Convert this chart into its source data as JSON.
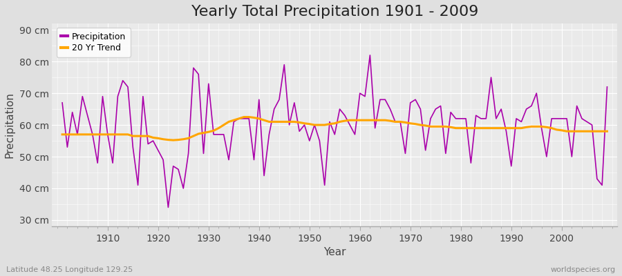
{
  "title": "Yearly Total Precipitation 1901 - 2009",
  "xlabel": "Year",
  "ylabel": "Precipitation",
  "subtitle": "Latitude 48.25 Longitude 129.25",
  "watermark": "worldspecies.org",
  "ylim": [
    28,
    92
  ],
  "yticks": [
    30,
    40,
    50,
    60,
    70,
    80,
    90
  ],
  "ytick_labels": [
    "30 cm",
    "40 cm",
    "50 cm",
    "60 cm",
    "70 cm",
    "80 cm",
    "90 cm"
  ],
  "years": [
    1901,
    1902,
    1903,
    1904,
    1905,
    1906,
    1907,
    1908,
    1909,
    1910,
    1911,
    1912,
    1913,
    1914,
    1915,
    1916,
    1917,
    1918,
    1919,
    1920,
    1921,
    1922,
    1923,
    1924,
    1925,
    1926,
    1927,
    1928,
    1929,
    1930,
    1931,
    1932,
    1933,
    1934,
    1935,
    1936,
    1937,
    1938,
    1939,
    1940,
    1941,
    1942,
    1943,
    1944,
    1945,
    1946,
    1947,
    1948,
    1949,
    1950,
    1951,
    1952,
    1953,
    1954,
    1955,
    1956,
    1957,
    1958,
    1959,
    1960,
    1961,
    1962,
    1963,
    1964,
    1965,
    1966,
    1967,
    1968,
    1969,
    1970,
    1971,
    1972,
    1973,
    1974,
    1975,
    1976,
    1977,
    1978,
    1979,
    1980,
    1981,
    1982,
    1983,
    1984,
    1985,
    1986,
    1987,
    1988,
    1989,
    1990,
    1991,
    1992,
    1993,
    1994,
    1995,
    1996,
    1997,
    1998,
    1999,
    2000,
    2001,
    2002,
    2003,
    2004,
    2005,
    2006,
    2007,
    2008,
    2009
  ],
  "precip": [
    67,
    53,
    64,
    57,
    69,
    63,
    57,
    48,
    69,
    57,
    48,
    69,
    74,
    72,
    53,
    41,
    69,
    54,
    55,
    52,
    49,
    34,
    47,
    46,
    40,
    51,
    78,
    76,
    51,
    73,
    57,
    57,
    57,
    49,
    61,
    62,
    62,
    62,
    49,
    68,
    44,
    57,
    65,
    68,
    79,
    60,
    67,
    58,
    60,
    55,
    60,
    55,
    41,
    61,
    57,
    65,
    63,
    60,
    57,
    70,
    69,
    82,
    59,
    68,
    68,
    65,
    61,
    61,
    51,
    67,
    68,
    65,
    52,
    62,
    65,
    66,
    51,
    64,
    62,
    62,
    62,
    48,
    63,
    62,
    62,
    75,
    62,
    65,
    58,
    47,
    62,
    61,
    65,
    66,
    70,
    59,
    50,
    62,
    62,
    62,
    62,
    50,
    66,
    62,
    61,
    60,
    43,
    41,
    72
  ],
  "trend": [
    57.0,
    57.0,
    57.0,
    57.0,
    57.0,
    57.0,
    57.0,
    57.0,
    57.0,
    57.0,
    57.0,
    57.0,
    57.0,
    57.0,
    56.5,
    56.5,
    56.5,
    56.5,
    56.0,
    55.8,
    55.5,
    55.3,
    55.2,
    55.3,
    55.5,
    55.8,
    56.5,
    57.2,
    57.5,
    57.8,
    58.2,
    59.0,
    60.0,
    61.0,
    61.5,
    62.0,
    62.5,
    62.5,
    62.3,
    62.0,
    61.5,
    61.0,
    61.0,
    61.0,
    61.0,
    61.0,
    61.0,
    60.8,
    60.5,
    60.3,
    60.0,
    60.0,
    60.0,
    60.3,
    60.5,
    61.0,
    61.3,
    61.5,
    61.5,
    61.5,
    61.5,
    61.5,
    61.5,
    61.5,
    61.5,
    61.3,
    61.0,
    61.0,
    60.8,
    60.5,
    60.3,
    60.0,
    59.8,
    59.5,
    59.5,
    59.5,
    59.5,
    59.3,
    59.0,
    59.0,
    59.0,
    59.0,
    59.0,
    59.0,
    59.0,
    59.0,
    59.0,
    59.0,
    59.0,
    59.0,
    59.0,
    59.0,
    59.3,
    59.5,
    59.5,
    59.5,
    59.3,
    59.0,
    58.5,
    58.3,
    58.0,
    58.0,
    58.0,
    58.0,
    58.0,
    58.0,
    58.0,
    58.0,
    58.0
  ],
  "precip_color": "#AA00AA",
  "trend_color": "#FFA500",
  "bg_color": "#E0E0E0",
  "plot_bg_color": "#EAEAEA",
  "grid_color": "#FFFFFF",
  "minor_grid_color": "#DEDEDE",
  "title_fontsize": 16,
  "label_fontsize": 11,
  "tick_fontsize": 10,
  "xticks": [
    1910,
    1920,
    1930,
    1940,
    1950,
    1960,
    1970,
    1980,
    1990,
    2000
  ]
}
